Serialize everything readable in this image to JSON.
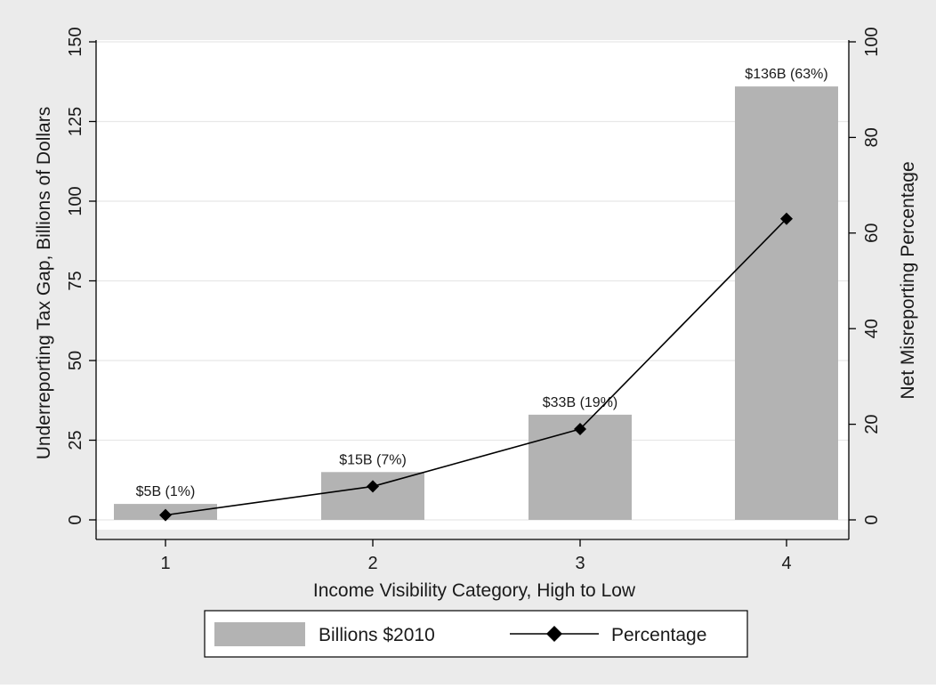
{
  "chart_data": {
    "type": "bar",
    "xlabel": "Income Visibility Category, High to Low",
    "ylabel": "Underreporting Tax Gap, Billions of Dollars",
    "y2label": "Net Misreporting Percentage",
    "categories": [
      1,
      2,
      3,
      4
    ],
    "ylim": [
      0,
      150
    ],
    "y2lim": [
      0,
      100
    ],
    "yticks": [
      0,
      25,
      50,
      75,
      100,
      125,
      150
    ],
    "y2ticks": [
      0,
      20,
      40,
      60,
      80,
      100
    ],
    "grid": true,
    "legend_position": "bottom",
    "series": [
      {
        "name": "Billions $2010",
        "type": "bar",
        "axis": "left",
        "values": [
          5,
          15,
          33,
          136
        ],
        "color": "#b3b3b3"
      },
      {
        "name": "Percentage",
        "type": "line",
        "axis": "right",
        "marker": "diamond",
        "values": [
          1,
          7,
          19,
          63
        ],
        "color": "#000000"
      }
    ],
    "bar_labels": [
      "$5B (1%)",
      "$15B (7%)",
      "$33B (19%)",
      "$136B (63%)"
    ]
  },
  "colors": {
    "outer_background": "#ebebeb",
    "plot_background": "#ffffff",
    "grid": "#e8e8e8",
    "bar": "#b3b3b3",
    "line": "#000000"
  }
}
